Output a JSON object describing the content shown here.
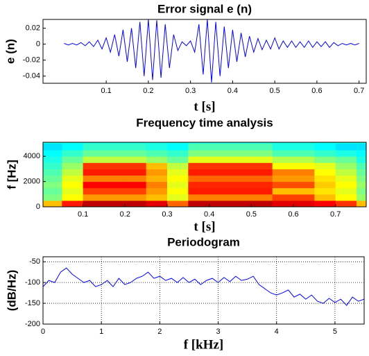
{
  "chart_data": [
    {
      "type": "line",
      "title": "Error signal  e (n)",
      "xlabel": "t [s]",
      "ylabel": "e (n)",
      "color": "#0000ff",
      "x": [
        0,
        0.01,
        0.02,
        0.03,
        0.04,
        0.05,
        0.06,
        0.07,
        0.08,
        0.09,
        0.1,
        0.11,
        0.12,
        0.13,
        0.14,
        0.15,
        0.16,
        0.17,
        0.18,
        0.19,
        0.2,
        0.21,
        0.22,
        0.23,
        0.24,
        0.25,
        0.26,
        0.27,
        0.28,
        0.29,
        0.3,
        0.31,
        0.32,
        0.33,
        0.34,
        0.35,
        0.36,
        0.37,
        0.38,
        0.39,
        0.4,
        0.41,
        0.42,
        0.43,
        0.44,
        0.45,
        0.46,
        0.47,
        0.48,
        0.49,
        0.5,
        0.51,
        0.52,
        0.53,
        0.54,
        0.55,
        0.56,
        0.57,
        0.58,
        0.59,
        0.6,
        0.61,
        0.62,
        0.63,
        0.64,
        0.65,
        0.66,
        0.67,
        0.68,
        0.69,
        0.7
      ],
      "values": [
        0.001,
        -0.001,
        0.001,
        -0.001,
        0.002,
        -0.002,
        0.003,
        -0.003,
        0.005,
        -0.006,
        0.008,
        -0.01,
        0.012,
        -0.015,
        0.018,
        -0.022,
        0.02,
        -0.03,
        0.028,
        -0.04,
        0.031,
        -0.045,
        0.03,
        -0.042,
        0.025,
        -0.03,
        0.012,
        -0.008,
        0.003,
        -0.002,
        0.004,
        -0.01,
        0.025,
        -0.038,
        0.031,
        -0.048,
        0.028,
        -0.04,
        0.022,
        -0.03,
        0.018,
        -0.022,
        0.014,
        -0.016,
        0.01,
        -0.01,
        0.007,
        -0.007,
        0.005,
        -0.006,
        0.008,
        -0.006,
        0.004,
        -0.004,
        0.004,
        -0.004,
        0.003,
        -0.004,
        0.004,
        -0.004,
        0.003,
        -0.003,
        0.003,
        -0.004,
        0.002,
        -0.002,
        0.001,
        -0.001,
        0.001,
        -0.001,
        0.001
      ],
      "xlim": [
        -0.05,
        0.717
      ],
      "ylim": [
        -0.049,
        0.031
      ],
      "xticks": [
        0.1,
        0.2,
        0.3,
        0.4,
        0.5,
        0.6,
        0.7
      ],
      "yticks": [
        0.02,
        0,
        -0.02,
        -0.04
      ],
      "grid": false
    },
    {
      "type": "heatmap",
      "title": "Frequency time analysis",
      "xlabel": "t [s]",
      "ylabel": "f [Hz]",
      "colormap": "jet",
      "clim": [
        -100,
        -20
      ],
      "x": [
        0.025,
        0.075,
        0.125,
        0.175,
        0.225,
        0.275,
        0.325,
        0.375,
        0.425,
        0.475,
        0.525,
        0.575,
        0.625,
        0.675,
        0.725,
        0.775
      ],
      "y": [
        250,
        750,
        1250,
        1750,
        2250,
        2750,
        3250,
        3750,
        4250,
        4750
      ],
      "values": [
        [
          -45,
          -60,
          -62,
          -60,
          -62,
          -64,
          -66,
          -68,
          -70,
          -72
        ],
        [
          -32,
          -50,
          -52,
          -50,
          -52,
          -55,
          -58,
          -62,
          -66,
          -70
        ],
        [
          -25,
          -42,
          -35,
          -30,
          -40,
          -32,
          -34,
          -55,
          -62,
          -66
        ],
        [
          -25,
          -42,
          -35,
          -30,
          -40,
          -32,
          -34,
          -55,
          -62,
          -66
        ],
        [
          -25,
          -42,
          -35,
          -30,
          -40,
          -32,
          -34,
          -55,
          -62,
          -66
        ],
        [
          -28,
          -45,
          -42,
          -40,
          -44,
          -42,
          -45,
          -58,
          -64,
          -68
        ],
        [
          -38,
          -52,
          -50,
          -52,
          -50,
          -52,
          -55,
          -62,
          -66,
          -70
        ],
        [
          -25,
          -40,
          -32,
          -33,
          -38,
          -32,
          -34,
          -52,
          -60,
          -64
        ],
        [
          -25,
          -40,
          -32,
          -33,
          -38,
          -32,
          -34,
          -52,
          -60,
          -64
        ],
        [
          -25,
          -40,
          -32,
          -33,
          -38,
          -32,
          -34,
          -52,
          -60,
          -64
        ],
        [
          -25,
          -40,
          -32,
          -33,
          -38,
          -32,
          -34,
          -52,
          -60,
          -64
        ],
        [
          -28,
          -35,
          -45,
          -36,
          -42,
          -40,
          -50,
          -56,
          -64,
          -68
        ],
        [
          -28,
          -35,
          -45,
          -36,
          -42,
          -40,
          -50,
          -56,
          -64,
          -68
        ],
        [
          -30,
          -45,
          -48,
          -46,
          -48,
          -50,
          -52,
          -60,
          -66,
          -70
        ],
        [
          -34,
          -50,
          -52,
          -50,
          -52,
          -55,
          -58,
          -62,
          -68,
          -72
        ],
        [
          -45,
          -58,
          -60,
          -58,
          -60,
          -62,
          -64,
          -68,
          -70,
          -72
        ]
      ],
      "xlim": [
        0.005,
        0.773
      ],
      "ylim": [
        0,
        5111
      ],
      "xticks": [
        0.1,
        0.2,
        0.3,
        0.4,
        0.5,
        0.6,
        0.7
      ],
      "yticks": [
        0,
        2000,
        4000
      ]
    },
    {
      "type": "line",
      "title": "Periodogram",
      "xlabel": "f [kHz]",
      "ylabel": "(dB/Hz)",
      "color": "#0000ff",
      "x": [
        0,
        0.1,
        0.2,
        0.3,
        0.4,
        0.5,
        0.6,
        0.7,
        0.8,
        0.9,
        1,
        1.1,
        1.2,
        1.3,
        1.4,
        1.5,
        1.6,
        1.7,
        1.8,
        1.9,
        2,
        2.1,
        2.2,
        2.3,
        2.4,
        2.5,
        2.6,
        2.7,
        2.8,
        2.9,
        3,
        3.1,
        3.2,
        3.3,
        3.4,
        3.5,
        3.6,
        3.7,
        3.8,
        3.9,
        4,
        4.1,
        4.2,
        4.3,
        4.4,
        4.5,
        4.6,
        4.7,
        4.8,
        4.9,
        5,
        5.1,
        5.2,
        5.3,
        5.4,
        5.5
      ],
      "values": [
        -110,
        -95,
        -100,
        -75,
        -65,
        -80,
        -90,
        -100,
        -95,
        -110,
        -105,
        -95,
        -110,
        -90,
        -105,
        -100,
        -90,
        -85,
        -75,
        -90,
        -85,
        -95,
        -90,
        -100,
        -88,
        -100,
        -92,
        -105,
        -95,
        -90,
        -100,
        -88,
        -98,
        -85,
        -95,
        -92,
        -85,
        -105,
        -115,
        -125,
        -130,
        -125,
        -118,
        -135,
        -128,
        -140,
        -130,
        -145,
        -150,
        -138,
        -148,
        -140,
        -155,
        -135,
        -145,
        -140
      ],
      "xlim": [
        0,
        5.5
      ],
      "ylim": [
        -200,
        -38
      ],
      "xticks": [
        0,
        1,
        2,
        3,
        4,
        5
      ],
      "yticks": [
        -50,
        -100,
        -150,
        -200
      ],
      "grid": true
    }
  ]
}
